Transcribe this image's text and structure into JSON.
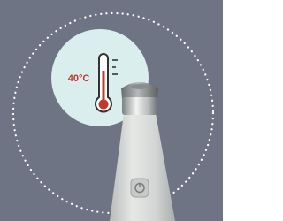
{
  "temperature_label": "40°C"
}
